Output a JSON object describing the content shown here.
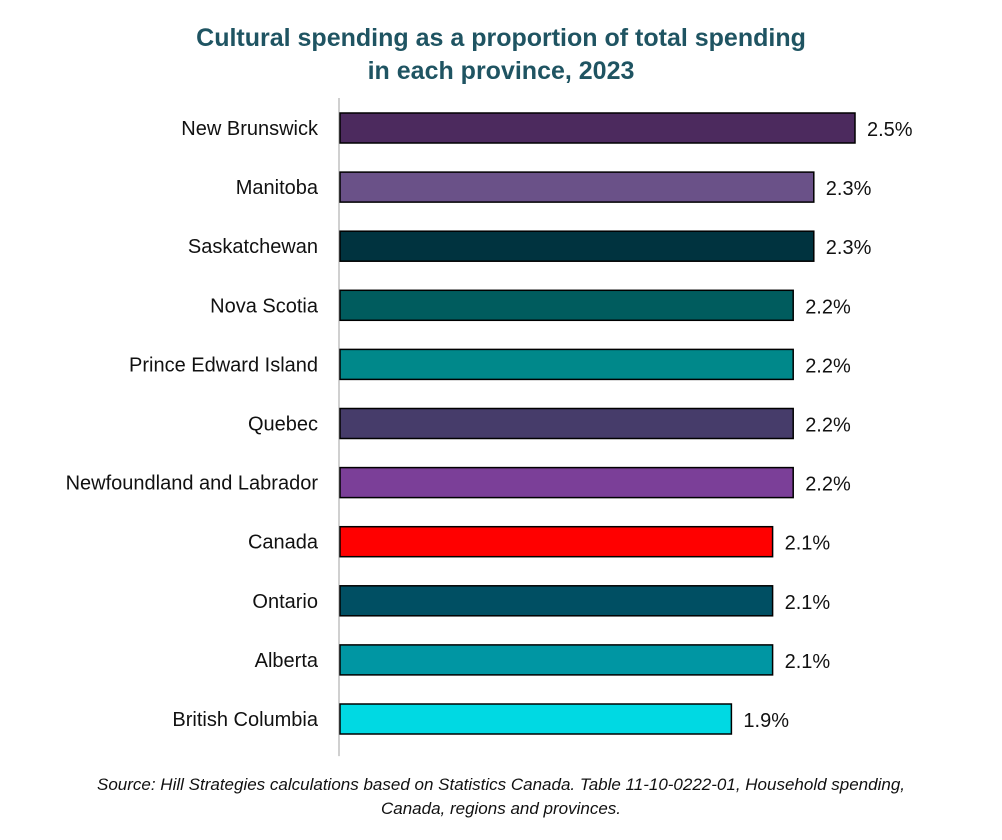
{
  "chart_data": {
    "type": "bar",
    "orientation": "horizontal",
    "title_lines": [
      "Cultural spending as a proportion of total spending",
      "in each province, 2023"
    ],
    "categories": [
      "New Brunswick",
      "Manitoba",
      "Saskatchewan",
      "Nova Scotia",
      "Prince Edward Island",
      "Quebec",
      "Newfoundland and Labrador",
      "Canada",
      "Ontario",
      "Alberta",
      "British Columbia"
    ],
    "values": [
      2.5,
      2.3,
      2.3,
      2.2,
      2.2,
      2.2,
      2.2,
      2.1,
      2.1,
      2.1,
      1.9
    ],
    "value_labels": [
      "2.5%",
      "2.3%",
      "2.3%",
      "2.2%",
      "2.2%",
      "2.2%",
      "2.2%",
      "2.1%",
      "2.1%",
      "2.1%",
      "1.9%"
    ],
    "colors": [
      "#4c2a5e",
      "#6a5188",
      "#00333f",
      "#005c5e",
      "#00888a",
      "#463c6a",
      "#7b3f98",
      "#ff0000",
      "#004f63",
      "#0096a3",
      "#00d9e3"
    ],
    "xlim": [
      0,
      2.5
    ],
    "grid": false,
    "legend": false
  },
  "source_lines": [
    "Source: Hill Strategies calculations based on Statistics Canada. Table 11-10-0222-01, Household spending,",
    "Canada, regions and provinces."
  ]
}
